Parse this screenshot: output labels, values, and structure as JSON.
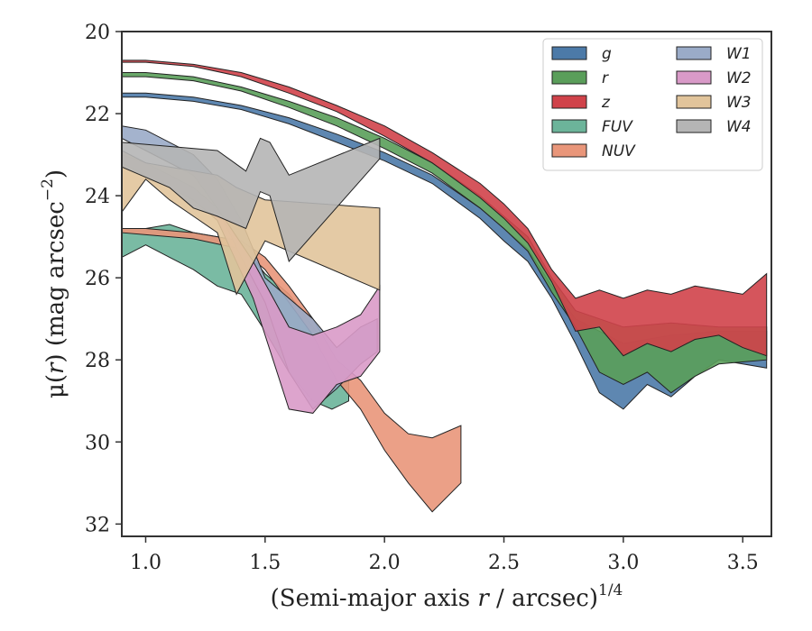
{
  "chart_data": {
    "type": "area",
    "xlabel_main": "(Semi-major axis ",
    "xlabel_var": "r",
    "xlabel_mid": " / arcsec)",
    "xlabel_sup": "1/4",
    "ylabel_pre": "μ(",
    "ylabel_var": "r",
    "ylabel_mid": ") (mag arcsec",
    "ylabel_sup": "−2",
    "ylabel_post": ")",
    "xlim": [
      0.9,
      3.62
    ],
    "ylim": [
      32.3,
      20.0
    ],
    "y_inverted": true,
    "xticks": [
      "1.0",
      "1.5",
      "2.0",
      "2.5",
      "3.0",
      "3.5"
    ],
    "yticks": [
      "20",
      "22",
      "24",
      "26",
      "28",
      "30",
      "32"
    ],
    "legend_position": "top-right",
    "legend_columns": 2,
    "series": [
      {
        "name": "g",
        "color": "#4c7aa8",
        "upper": [
          [
            0.9,
            21.5
          ],
          [
            1.0,
            21.5
          ],
          [
            1.2,
            21.6
          ],
          [
            1.4,
            21.8
          ],
          [
            1.6,
            22.1
          ],
          [
            1.8,
            22.5
          ],
          [
            2.0,
            22.95
          ],
          [
            2.2,
            23.5
          ],
          [
            2.4,
            24.3
          ],
          [
            2.5,
            24.8
          ],
          [
            2.6,
            25.3
          ],
          [
            2.7,
            26.2
          ],
          [
            2.8,
            27.0
          ],
          [
            2.9,
            27.3
          ],
          [
            3.0,
            27.6
          ],
          [
            3.2,
            27.4
          ],
          [
            3.4,
            27.3
          ],
          [
            3.6,
            27.3
          ]
        ],
        "lower": [
          [
            0.9,
            21.6
          ],
          [
            1.0,
            21.6
          ],
          [
            1.2,
            21.7
          ],
          [
            1.4,
            21.9
          ],
          [
            1.6,
            22.25
          ],
          [
            1.8,
            22.7
          ],
          [
            2.0,
            23.15
          ],
          [
            2.2,
            23.7
          ],
          [
            2.4,
            24.55
          ],
          [
            2.5,
            25.1
          ],
          [
            2.6,
            25.6
          ],
          [
            2.7,
            26.5
          ],
          [
            2.8,
            27.6
          ],
          [
            2.9,
            28.8
          ],
          [
            3.0,
            29.2
          ],
          [
            3.1,
            28.6
          ],
          [
            3.2,
            28.9
          ],
          [
            3.3,
            28.4
          ],
          [
            3.4,
            28.0
          ],
          [
            3.6,
            28.2
          ]
        ]
      },
      {
        "name": "r",
        "color": "#5a9e5a",
        "upper": [
          [
            0.9,
            21.0
          ],
          [
            1.0,
            21.0
          ],
          [
            1.2,
            21.1
          ],
          [
            1.4,
            21.35
          ],
          [
            1.6,
            21.7
          ],
          [
            1.8,
            22.1
          ],
          [
            2.0,
            22.6
          ],
          [
            2.2,
            23.2
          ],
          [
            2.4,
            24.0
          ],
          [
            2.5,
            24.5
          ],
          [
            2.6,
            25.0
          ],
          [
            2.7,
            26.0
          ],
          [
            2.8,
            26.8
          ],
          [
            2.9,
            27.0
          ],
          [
            3.0,
            27.2
          ],
          [
            3.2,
            27.1
          ],
          [
            3.4,
            27.2
          ],
          [
            3.6,
            27.2
          ]
        ],
        "lower": [
          [
            0.9,
            21.1
          ],
          [
            1.0,
            21.1
          ],
          [
            1.2,
            21.2
          ],
          [
            1.4,
            21.45
          ],
          [
            1.6,
            21.85
          ],
          [
            1.8,
            22.3
          ],
          [
            2.0,
            22.85
          ],
          [
            2.2,
            23.45
          ],
          [
            2.4,
            24.3
          ],
          [
            2.5,
            24.8
          ],
          [
            2.6,
            25.35
          ],
          [
            2.7,
            26.35
          ],
          [
            2.8,
            27.2
          ],
          [
            2.9,
            28.3
          ],
          [
            3.0,
            28.6
          ],
          [
            3.1,
            28.3
          ],
          [
            3.2,
            28.8
          ],
          [
            3.3,
            28.4
          ],
          [
            3.4,
            28.1
          ],
          [
            3.6,
            28.0
          ]
        ]
      },
      {
        "name": "z",
        "color": "#d0424a",
        "upper": [
          [
            0.9,
            20.7
          ],
          [
            1.0,
            20.7
          ],
          [
            1.2,
            20.8
          ],
          [
            1.4,
            21.0
          ],
          [
            1.6,
            21.35
          ],
          [
            1.8,
            21.8
          ],
          [
            2.0,
            22.3
          ],
          [
            2.2,
            22.95
          ],
          [
            2.4,
            23.7
          ],
          [
            2.5,
            24.2
          ],
          [
            2.6,
            24.8
          ],
          [
            2.7,
            25.8
          ],
          [
            2.8,
            26.5
          ],
          [
            2.9,
            26.3
          ],
          [
            3.0,
            26.5
          ],
          [
            3.1,
            26.3
          ],
          [
            3.2,
            26.4
          ],
          [
            3.3,
            26.2
          ],
          [
            3.4,
            26.3
          ],
          [
            3.5,
            26.4
          ],
          [
            3.6,
            25.9
          ]
        ],
        "lower": [
          [
            0.9,
            20.75
          ],
          [
            1.0,
            20.75
          ],
          [
            1.2,
            20.85
          ],
          [
            1.4,
            21.1
          ],
          [
            1.6,
            21.5
          ],
          [
            1.8,
            21.95
          ],
          [
            2.0,
            22.55
          ],
          [
            2.2,
            23.2
          ],
          [
            2.4,
            24.05
          ],
          [
            2.5,
            24.55
          ],
          [
            2.6,
            25.15
          ],
          [
            2.7,
            26.1
          ],
          [
            2.8,
            27.3
          ],
          [
            2.9,
            27.2
          ],
          [
            3.0,
            27.9
          ],
          [
            3.1,
            27.6
          ],
          [
            3.2,
            27.8
          ],
          [
            3.3,
            27.5
          ],
          [
            3.4,
            27.4
          ],
          [
            3.5,
            27.7
          ],
          [
            3.6,
            27.9
          ]
        ]
      },
      {
        "name": "FUV",
        "color": "#6cb49a",
        "upper": [
          [
            0.9,
            24.8
          ],
          [
            1.0,
            24.8
          ],
          [
            1.1,
            24.7
          ],
          [
            1.2,
            24.9
          ],
          [
            1.3,
            25.0
          ],
          [
            1.4,
            25.2
          ],
          [
            1.5,
            25.9
          ],
          [
            1.6,
            26.4
          ],
          [
            1.7,
            27.2
          ],
          [
            1.8,
            28.0
          ],
          [
            1.85,
            28.5
          ]
        ],
        "lower": [
          [
            0.9,
            25.5
          ],
          [
            1.0,
            25.2
          ],
          [
            1.1,
            25.5
          ],
          [
            1.2,
            25.8
          ],
          [
            1.3,
            26.2
          ],
          [
            1.4,
            26.4
          ],
          [
            1.5,
            27.3
          ],
          [
            1.6,
            28.3
          ],
          [
            1.7,
            29.0
          ],
          [
            1.78,
            29.2
          ],
          [
            1.85,
            29.0
          ]
        ]
      },
      {
        "name": "NUV",
        "color": "#e9967a",
        "upper": [
          [
            0.9,
            24.8
          ],
          [
            1.0,
            24.8
          ],
          [
            1.2,
            24.9
          ],
          [
            1.4,
            25.1
          ],
          [
            1.5,
            25.5
          ],
          [
            1.6,
            26.2
          ],
          [
            1.7,
            27.0
          ],
          [
            1.8,
            28.0
          ],
          [
            1.9,
            28.5
          ],
          [
            2.0,
            29.3
          ],
          [
            2.1,
            29.8
          ],
          [
            2.2,
            29.9
          ],
          [
            2.32,
            29.6
          ]
        ],
        "lower": [
          [
            0.9,
            24.9
          ],
          [
            1.0,
            24.95
          ],
          [
            1.2,
            25.05
          ],
          [
            1.4,
            25.3
          ],
          [
            1.5,
            25.8
          ],
          [
            1.6,
            26.6
          ],
          [
            1.7,
            27.4
          ],
          [
            1.8,
            28.5
          ],
          [
            1.9,
            29.2
          ],
          [
            2.0,
            30.2
          ],
          [
            2.1,
            31.0
          ],
          [
            2.2,
            31.7
          ],
          [
            2.32,
            31.0
          ]
        ]
      },
      {
        "name": "W1",
        "color": "#9aabc8",
        "upper": [
          [
            0.9,
            22.3
          ],
          [
            1.0,
            22.4
          ],
          [
            1.2,
            23.0
          ],
          [
            1.3,
            23.6
          ],
          [
            1.4,
            24.6
          ],
          [
            1.5,
            26.0
          ],
          [
            1.6,
            26.5
          ],
          [
            1.7,
            27.0
          ],
          [
            1.8,
            27.7
          ],
          [
            1.9,
            27.2
          ],
          [
            1.97,
            27.0
          ]
        ],
        "lower": [
          [
            0.9,
            22.6
          ],
          [
            1.0,
            22.9
          ],
          [
            1.2,
            23.5
          ],
          [
            1.3,
            24.3
          ],
          [
            1.4,
            25.5
          ],
          [
            1.5,
            26.6
          ],
          [
            1.6,
            28.3
          ],
          [
            1.7,
            29.2
          ],
          [
            1.8,
            28.7
          ],
          [
            1.9,
            28.1
          ],
          [
            1.97,
            27.8
          ]
        ]
      },
      {
        "name": "W2",
        "color": "#d99ac8",
        "upper": [
          [
            0.9,
            23.0
          ],
          [
            1.0,
            23.2
          ],
          [
            1.2,
            23.8
          ],
          [
            1.3,
            24.3
          ],
          [
            1.45,
            25.6
          ],
          [
            1.6,
            27.2
          ],
          [
            1.7,
            27.4
          ],
          [
            1.8,
            27.2
          ],
          [
            1.9,
            26.9
          ],
          [
            1.98,
            26.2
          ]
        ],
        "lower": [
          [
            0.9,
            23.2
          ],
          [
            1.0,
            23.5
          ],
          [
            1.2,
            24.1
          ],
          [
            1.3,
            24.6
          ],
          [
            1.45,
            26.5
          ],
          [
            1.6,
            29.2
          ],
          [
            1.7,
            29.3
          ],
          [
            1.8,
            28.6
          ],
          [
            1.9,
            28.4
          ],
          [
            1.98,
            27.8
          ]
        ]
      },
      {
        "name": "W3",
        "color": "#e1c49b",
        "upper": [
          [
            0.9,
            22.9
          ],
          [
            1.0,
            23.2
          ],
          [
            1.1,
            23.3
          ],
          [
            1.2,
            23.4
          ],
          [
            1.3,
            23.5
          ],
          [
            1.38,
            23.8
          ],
          [
            1.5,
            24.1
          ],
          [
            1.98,
            24.3
          ]
        ],
        "lower": [
          [
            0.9,
            24.4
          ],
          [
            1.0,
            23.6
          ],
          [
            1.1,
            24.1
          ],
          [
            1.2,
            24.5
          ],
          [
            1.3,
            24.9
          ],
          [
            1.38,
            26.4
          ],
          [
            1.5,
            25.1
          ],
          [
            1.98,
            26.3
          ]
        ]
      },
      {
        "name": "W4",
        "color": "#b5b5b5",
        "upper": [
          [
            0.9,
            22.7
          ],
          [
            1.3,
            22.9
          ],
          [
            1.42,
            23.4
          ],
          [
            1.48,
            22.6
          ],
          [
            1.52,
            22.7
          ],
          [
            1.6,
            23.5
          ],
          [
            1.98,
            22.6
          ]
        ],
        "lower": [
          [
            0.9,
            23.3
          ],
          [
            1.1,
            23.8
          ],
          [
            1.2,
            24.3
          ],
          [
            1.3,
            24.5
          ],
          [
            1.42,
            24.8
          ],
          [
            1.48,
            23.9
          ],
          [
            1.52,
            24.0
          ],
          [
            1.6,
            25.6
          ],
          [
            1.98,
            23.1
          ]
        ]
      }
    ]
  }
}
